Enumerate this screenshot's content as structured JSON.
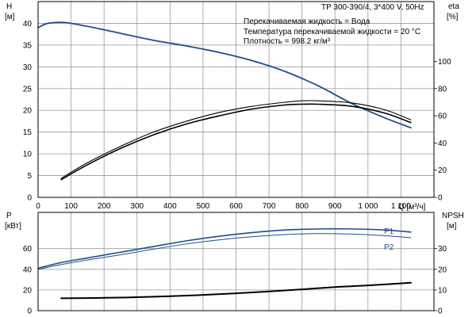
{
  "header": {
    "model": "TP 300-390/4, 3*400 V, 50Hz",
    "info": [
      "Перекачиваемая жидкость = Вода",
      "Температура перекачиваемой жидкости = 20 °C",
      "Плотность = 998.2 кг/м³"
    ]
  },
  "chart_data": [
    {
      "type": "line",
      "panel": "upper",
      "x_unit_label": "Q [м³/ч]",
      "xlim": [
        0,
        1200
      ],
      "xticks": [
        0,
        100,
        200,
        300,
        400,
        500,
        600,
        700,
        800,
        900,
        1000,
        1100
      ],
      "xtick_labels": [
        "0",
        "100",
        "200",
        "300",
        "400",
        "500",
        "600",
        "700",
        "800",
        "900",
        "1 000",
        "1 100"
      ],
      "ylabel_left": "H",
      "yunit_left": "[м]",
      "ylim_left": [
        0,
        45
      ],
      "yticks_left": [
        0,
        5,
        10,
        15,
        20,
        25,
        30,
        35,
        40
      ],
      "ylabel_right": "eta",
      "yunit_right": "[%]",
      "ylim_right": [
        0,
        144
      ],
      "yticks_right": [
        0,
        20,
        40,
        60,
        80,
        100
      ],
      "grid": true,
      "series": [
        {
          "axis": "left",
          "color": "#1f4e8c",
          "width": 1.8,
          "x": [
            0,
            30,
            80,
            150,
            250,
            350,
            450,
            550,
            650,
            750,
            850,
            950,
            1050,
            1130
          ],
          "y": [
            39,
            40,
            40.2,
            39.3,
            37.7,
            36.1,
            34.8,
            33.3,
            31.4,
            28.9,
            25.6,
            21.6,
            18.3,
            16.0
          ]
        },
        {
          "axis": "right",
          "color": "#000000",
          "width": 1.6,
          "x": [
            70,
            150,
            250,
            350,
            450,
            550,
            650,
            750,
            800,
            850,
            950,
            1050,
            1130
          ],
          "y": [
            13,
            24,
            36,
            46,
            54,
            60,
            65,
            68,
            68.5,
            68.5,
            67,
            62,
            55
          ]
        },
        {
          "axis": "right",
          "color": "#000000",
          "width": 1.1,
          "x": [
            70,
            150,
            250,
            350,
            450,
            550,
            650,
            750,
            800,
            850,
            950,
            1050,
            1130
          ],
          "y": [
            14,
            25.5,
            37.5,
            48,
            56,
            62.5,
            67,
            70,
            71,
            71,
            69.5,
            64.5,
            57
          ]
        }
      ]
    },
    {
      "type": "line",
      "panel": "lower",
      "xlim": [
        0,
        1200
      ],
      "ylabel_left": "P",
      "yunit_left": "[кВт]",
      "ylim_left": [
        0,
        95
      ],
      "yticks_left": [
        0,
        20,
        40,
        60
      ],
      "ylabel_right": "NPSH",
      "yunit_right": "[м]",
      "ylim_right": [
        0,
        47.5
      ],
      "yticks_right": [
        0,
        10,
        20,
        30
      ],
      "grid": true,
      "series": [
        {
          "name": "P1",
          "axis": "left",
          "color": "#1f4e8c",
          "width": 1.6,
          "x": [
            0,
            70,
            150,
            250,
            350,
            450,
            550,
            650,
            750,
            850,
            950,
            1050,
            1130
          ],
          "y": [
            41,
            46.5,
            51,
            56.5,
            62,
            67.5,
            72,
            75.5,
            78,
            79,
            79,
            78,
            76
          ]
        },
        {
          "name": "P2",
          "axis": "left",
          "color": "#1f4e8c",
          "width": 1.0,
          "x": [
            0,
            70,
            150,
            250,
            350,
            450,
            550,
            650,
            750,
            850,
            950,
            1050,
            1130
          ],
          "y": [
            40,
            44.5,
            49,
            54,
            59.5,
            64.5,
            68.5,
            71.5,
            73.5,
            74.5,
            74,
            72.5,
            70.5
          ]
        },
        {
          "axis": "right",
          "color": "#000000",
          "width": 2.0,
          "x": [
            70,
            200,
            300,
            400,
            500,
            600,
            700,
            800,
            900,
            1000,
            1130
          ],
          "y": [
            6.0,
            6.2,
            6.5,
            7.0,
            7.6,
            8.4,
            9.3,
            10.3,
            11.4,
            12.2,
            13.5
          ]
        }
      ]
    }
  ]
}
